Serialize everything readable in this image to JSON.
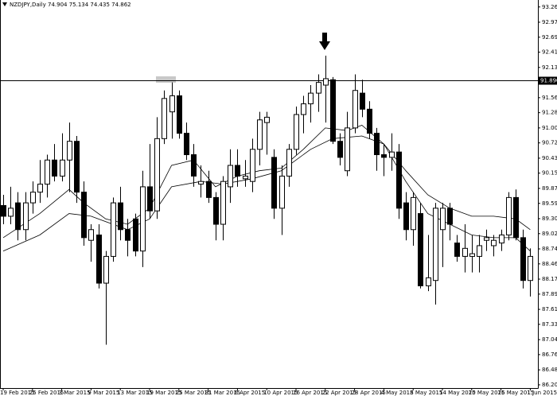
{
  "chart_data": {
    "type": "candlestick",
    "title": "NZDJPY,Daily  74.904 75.134 74.435 74.862",
    "categories": [
      "19 Feb 2015",
      null,
      null,
      null,
      "25 Feb 2015",
      null,
      null,
      null,
      "3 Mar 2015",
      null,
      null,
      null,
      "9 Mar 2015",
      null,
      null,
      null,
      "13 Mar 2015",
      null,
      null,
      null,
      "19 Mar 2015",
      null,
      null,
      null,
      "25 Mar 2015",
      null,
      null,
      null,
      "31 Mar 2015",
      null,
      null,
      null,
      "6 Apr 2015",
      null,
      null,
      null,
      "10 Apr 2015",
      null,
      null,
      null,
      "16 Apr 2015",
      null,
      null,
      null,
      "22 Apr 2015",
      null,
      null,
      null,
      "28 Apr 2015",
      null,
      null,
      null,
      "4 May 2015",
      null,
      null,
      null,
      "8 May 2015",
      null,
      null,
      null,
      "14 May 2015",
      null,
      null,
      null,
      "20 May 2015",
      null,
      null,
      null,
      "26 May 2015",
      null,
      null,
      null,
      "1 Jun 2015"
    ],
    "open": [
      89.55,
      89.35,
      89.6,
      89.1,
      89.6,
      89.8,
      89.95,
      90.4,
      90.1,
      90.4,
      90.75,
      89.8,
      88.9,
      89.0,
      88.1,
      88.6,
      89.6,
      89.1,
      89.3,
      88.7,
      89.9,
      89.45,
      90.8,
      91.3,
      91.6,
      90.9,
      90.5,
      89.95,
      90.0,
      89.7,
      89.2,
      89.9,
      90.3,
      90.05,
      90.0,
      90.6,
      91.1,
      90.45,
      89.5,
      90.1,
      90.6,
      91.25,
      91.45,
      91.65,
      91.8,
      91.9,
      90.75,
      90.2,
      91.0,
      91.65,
      91.35,
      90.9,
      90.5,
      90.45,
      90.55,
      89.6,
      89.1,
      89.4,
      88.05,
      88.15,
      89.1,
      89.5,
      88.85,
      88.6,
      88.6,
      88.6,
      88.9,
      88.8,
      88.85,
      89.0,
      89.7,
      88.95,
      88.15
    ],
    "high": [
      89.75,
      89.9,
      89.8,
      89.8,
      90.0,
      90.4,
      90.5,
      90.7,
      90.9,
      91.1,
      90.85,
      90.0,
      89.2,
      89.2,
      88.7,
      89.7,
      89.9,
      89.3,
      89.4,
      90.2,
      90.7,
      91.2,
      91.7,
      91.85,
      91.7,
      91.1,
      90.7,
      90.3,
      90.2,
      89.8,
      90.1,
      90.6,
      90.6,
      90.4,
      90.8,
      91.3,
      91.3,
      90.6,
      90.3,
      90.7,
      91.4,
      91.6,
      91.8,
      92.0,
      92.35,
      91.95,
      90.9,
      91.3,
      92.0,
      91.9,
      91.5,
      91.0,
      90.7,
      90.9,
      90.7,
      89.8,
      89.8,
      89.6,
      89.0,
      89.6,
      89.6,
      89.6,
      89.0,
      89.2,
      89.0,
      89.0,
      89.1,
      89.0,
      89.1,
      89.8,
      89.85,
      89.1,
      88.75
    ],
    "low": [
      89.2,
      89.2,
      88.9,
      88.9,
      89.4,
      89.6,
      89.7,
      90.0,
      90.0,
      89.8,
      89.6,
      88.8,
      88.5,
      88.0,
      86.95,
      88.5,
      88.9,
      88.6,
      88.6,
      88.4,
      89.3,
      89.3,
      90.7,
      90.8,
      90.8,
      90.4,
      89.9,
      89.7,
      89.6,
      88.9,
      88.9,
      89.6,
      89.9,
      89.9,
      89.8,
      90.3,
      90.5,
      89.3,
      89.0,
      89.9,
      90.5,
      90.9,
      91.1,
      91.3,
      91.1,
      90.7,
      90.3,
      90.1,
      90.9,
      91.2,
      90.8,
      90.2,
      90.1,
      90.2,
      89.3,
      88.9,
      88.8,
      88.0,
      87.95,
      87.7,
      88.4,
      88.9,
      88.5,
      88.3,
      88.3,
      88.3,
      88.7,
      88.6,
      88.7,
      88.9,
      88.9,
      88.0,
      87.85
    ],
    "close": [
      89.35,
      89.5,
      89.1,
      89.6,
      89.8,
      89.95,
      90.4,
      90.1,
      90.4,
      90.75,
      89.8,
      88.95,
      89.1,
      88.1,
      88.6,
      89.6,
      89.1,
      88.9,
      88.7,
      89.9,
      89.45,
      90.8,
      91.55,
      91.6,
      90.9,
      90.5,
      90.1,
      90.0,
      89.7,
      89.2,
      90.0,
      90.3,
      90.1,
      90.1,
      90.6,
      91.15,
      91.2,
      89.5,
      90.1,
      90.6,
      91.25,
      91.45,
      91.65,
      91.85,
      91.92,
      90.75,
      90.45,
      91.0,
      91.7,
      91.35,
      90.9,
      90.5,
      90.45,
      90.55,
      89.5,
      89.1,
      89.7,
      88.05,
      88.2,
      89.5,
      89.5,
      89.2,
      88.6,
      88.75,
      88.65,
      88.8,
      88.95,
      88.9,
      89.0,
      89.7,
      88.95,
      88.15,
      88.6
    ],
    "lines": [
      {
        "color": "#000000",
        "x": [
          0,
          5,
          9,
          11,
          14,
          17,
          20,
          23,
          26,
          29,
          32,
          35,
          38,
          41,
          44,
          47,
          49,
          52,
          55,
          58,
          61,
          64,
          67,
          70,
          72
        ],
        "values": [
          88.95,
          89.4,
          89.85,
          89.6,
          89.3,
          89.2,
          89.5,
          90.3,
          90.4,
          89.9,
          90.1,
          90.2,
          90.25,
          90.6,
          91.0,
          90.95,
          91.05,
          90.7,
          90.0,
          89.4,
          89.2,
          89.0,
          88.95,
          88.95,
          88.7
        ]
      },
      {
        "color": "#000000",
        "x": [
          0,
          5,
          9,
          12,
          17,
          20,
          23,
          27,
          30,
          34,
          38,
          42,
          45,
          49,
          52,
          55,
          58,
          61,
          64,
          67,
          70,
          72
        ],
        "values": [
          88.7,
          89.0,
          89.4,
          89.35,
          89.1,
          89.3,
          89.9,
          90.0,
          89.95,
          90.05,
          90.2,
          90.6,
          90.8,
          90.85,
          90.7,
          90.2,
          89.75,
          89.5,
          89.35,
          89.35,
          89.3,
          89.1
        ]
      }
    ],
    "up_color": "#ffffff",
    "down_color": "#000000",
    "ylim": [
      86.14,
      93.39
    ],
    "yticks": [
      {
        "value": 93.26,
        "label": "93.260"
      },
      92.975,
      92.695,
      92.415,
      {
        "value": 92.13,
        "label": "92.130"
      },
      91.565,
      91.285,
      {
        "value": 91.0,
        "label": "91.000"
      },
      {
        "value": 90.72,
        "label": "90.720"
      },
      90.435,
      90.155,
      {
        "value": 89.87,
        "label": "89.870"
      },
      {
        "value": 89.59,
        "label": "89.590"
      },
      89.305,
      89.025,
      {
        "value": 88.74,
        "label": "88.740"
      },
      {
        "value": 88.46,
        "label": "88.460"
      },
      88.175,
      87.895,
      {
        "value": 87.61,
        "label": "87.610"
      },
      {
        "value": 87.33,
        "label": "87.330"
      },
      87.045,
      86.765,
      {
        "value": 86.48,
        "label": "86.480"
      },
      {
        "value": 86.2,
        "label": "86.200"
      }
    ],
    "hline": {
      "value": 91.89,
      "label": "91.890"
    }
  }
}
